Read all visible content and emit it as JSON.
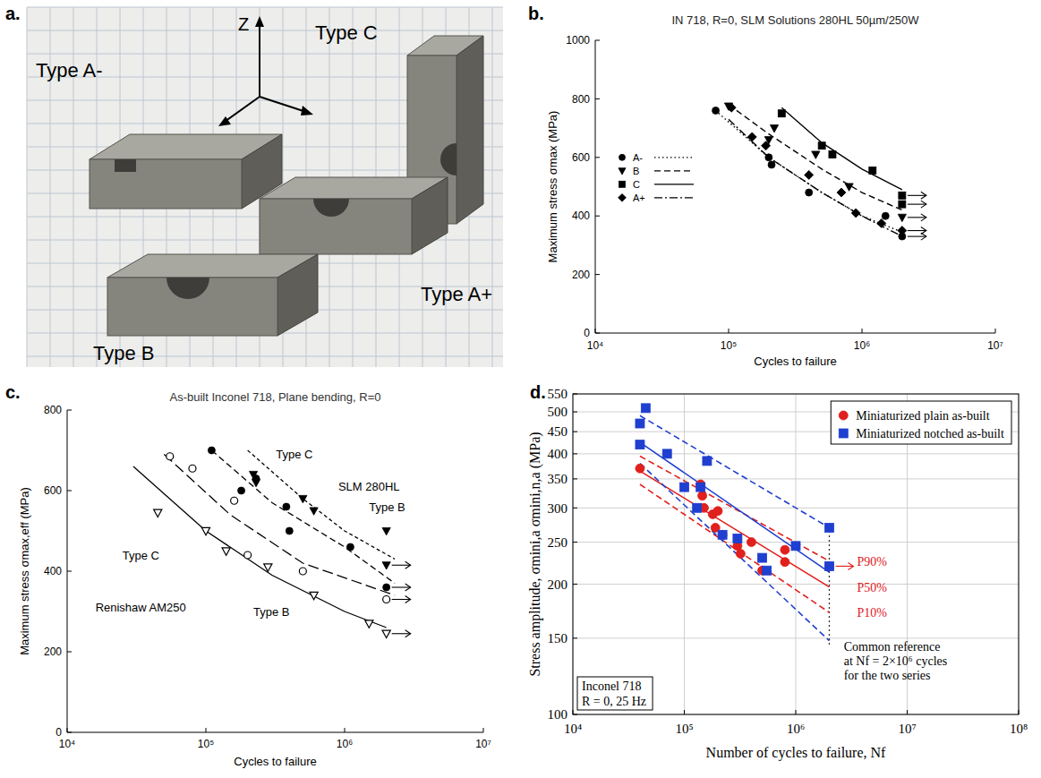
{
  "panel_labels": [
    "a.",
    "b.",
    "c.",
    "d."
  ],
  "photo": {
    "axis_label": "Z",
    "labels": [
      "Type A-",
      "Type C",
      "Type A+",
      "Type B"
    ]
  },
  "chart_data": [
    {
      "type": "scatter",
      "title": "IN 718, R=0, SLM Solutions 280HL 50µm/250W",
      "x_label": "Cycles to failure",
      "y_label": "Maximum stress σmax (MPa)",
      "log": "x",
      "xlim": [
        10000,
        10000000
      ],
      "xticks": [
        {
          "value": 10000,
          "label": "10⁴"
        },
        {
          "value": 100000,
          "label": "10⁵"
        },
        {
          "value": 1000000,
          "label": "10⁶"
        },
        {
          "value": 10000000,
          "label": "10⁷"
        }
      ],
      "ylim": [
        0,
        1000
      ],
      "yticks": [
        0,
        200,
        400,
        600,
        800,
        1000
      ],
      "grid": false,
      "legend": "lower left",
      "series": [
        {
          "name": "A-",
          "color": "#000000",
          "marker": "circle",
          "line_style": "dotted",
          "x": [
            80000,
            200000,
            210000,
            400000,
            1500000,
            2000000
          ],
          "values": [
            760,
            600,
            575,
            480,
            400,
            330
          ],
          "runout": [
            false,
            false,
            false,
            false,
            false,
            true
          ],
          "fits": [
            {
              "x": [
                80000,
                200000,
                500000,
                1000000,
                2000000
              ],
              "values": [
                760,
                600,
                480,
                400,
                345
              ]
            }
          ]
        },
        {
          "name": "B",
          "color": "#000000",
          "marker": "triangle-down",
          "line_style": "dashed",
          "x": [
            100000,
            200000,
            220000,
            450000,
            800000,
            2000000
          ],
          "values": [
            775,
            660,
            700,
            610,
            500,
            395
          ],
          "runout": [
            false,
            false,
            false,
            false,
            false,
            true
          ],
          "fits": [
            {
              "x": [
                100000,
                200000,
                500000,
                1000000,
                2000000
              ],
              "values": [
                780,
                680,
                560,
                480,
                420
              ]
            }
          ]
        },
        {
          "name": "C",
          "color": "#000000",
          "marker": "square",
          "line_style": "solid",
          "x": [
            250000,
            500000,
            600000,
            1200000,
            2000000,
            2000000
          ],
          "values": [
            750,
            640,
            610,
            555,
            470,
            440
          ],
          "runout": [
            false,
            false,
            false,
            false,
            true,
            true
          ],
          "fits": [
            {
              "x": [
                250000,
                500000,
                1000000,
                2000000
              ],
              "values": [
                770,
                650,
                560,
                490
              ]
            }
          ]
        },
        {
          "name": "A+",
          "color": "#000000",
          "marker": "diamond",
          "line_style": "dash-dot",
          "x": [
            105000,
            150000,
            190000,
            400000,
            700000,
            900000,
            1400000,
            2000000
          ],
          "values": [
            770,
            670,
            640,
            540,
            480,
            410,
            375,
            350
          ],
          "runout": [
            false,
            false,
            false,
            false,
            false,
            false,
            false,
            true
          ],
          "fits": [
            {
              "x": [
                100000,
                200000,
                500000,
                1000000,
                2000000
              ],
              "values": [
                730,
                600,
                480,
                400,
                330
              ]
            }
          ]
        }
      ]
    },
    {
      "type": "scatter",
      "title": "As-built Inconel 718, Plane bending, R=0",
      "x_label": "Cycles to failure",
      "y_label": "Maximum stress σmax,eff (MPa)",
      "log": "x",
      "xlim": [
        10000,
        10000000
      ],
      "xticks": [
        {
          "value": 10000,
          "label": "10⁴"
        },
        {
          "value": 100000,
          "label": "10⁵"
        },
        {
          "value": 1000000,
          "label": "10⁶"
        },
        {
          "value": 10000000,
          "label": "10⁷"
        }
      ],
      "ylim": [
        0,
        800
      ],
      "yticks": [
        0,
        200,
        400,
        600,
        800
      ],
      "grid": false,
      "series": [
        {
          "color": "#000000",
          "marker": "triangle-down",
          "line_style": "short-dash",
          "x": [
            220000,
            230000,
            500000,
            600000,
            2000000,
            2000000
          ],
          "values": [
            640,
            620,
            580,
            550,
            500,
            415
          ],
          "runout": [
            false,
            false,
            false,
            false,
            false,
            true
          ],
          "fits": [
            {
              "x": [
                200000,
                500000,
                1000000,
                2300000
              ],
              "values": [
                700,
                580,
                500,
                430
              ]
            }
          ]
        },
        {
          "color": "#000000",
          "marker": "circle",
          "line_style": "dashed",
          "x": [
            110000,
            180000,
            230000,
            380000,
            400000,
            1100000,
            2000000
          ],
          "values": [
            700,
            600,
            630,
            560,
            500,
            460,
            360
          ],
          "runout": [
            false,
            false,
            false,
            false,
            false,
            false,
            true
          ],
          "fits": [
            {
              "x": [
                110000,
                300000,
                1000000,
                2300000
              ],
              "values": [
                700,
                570,
                460,
                370
              ]
            }
          ]
        },
        {
          "color": "#000000",
          "marker": "circle-open",
          "line_style": "long-dash",
          "x": [
            55000,
            80000,
            160000,
            200000,
            500000,
            2000000
          ],
          "values": [
            685,
            655,
            575,
            440,
            400,
            330
          ],
          "runout": [
            false,
            false,
            false,
            false,
            false,
            true
          ],
          "fits": [
            {
              "x": [
                50000,
                150000,
                500000,
                2300000
              ],
              "values": [
                690,
                540,
                420,
                340
              ]
            }
          ]
        },
        {
          "color": "#000000",
          "marker": "triangle-down-open",
          "line_style": "solid",
          "x": [
            45000,
            100000,
            140000,
            280000,
            600000,
            1500000,
            2000000
          ],
          "values": [
            545,
            500,
            450,
            410,
            340,
            270,
            245
          ],
          "runout": [
            false,
            false,
            false,
            false,
            false,
            false,
            true
          ],
          "fits": [
            {
              "x": [
                30000,
                100000,
                300000,
                1000000,
                2000000
              ],
              "values": [
                660,
                500,
                390,
                300,
                260
              ]
            }
          ]
        }
      ],
      "annotations": [
        {
          "text": "Type C",
          "x": 320000,
          "y": 680
        },
        {
          "text": "SLM 280HL",
          "x": 900000,
          "y": 600
        },
        {
          "text": "Type B",
          "x": 1500000,
          "y": 548
        },
        {
          "text": "Type C",
          "x": 25000,
          "y": 430
        },
        {
          "text": "Renishaw AM250",
          "x": 16000,
          "y": 300
        },
        {
          "text": "Type B",
          "x": 220000,
          "y": 290
        }
      ]
    },
    {
      "type": "scatter",
      "x_label": "Number of cycles to failure, Nf",
      "y_label": "Stress amplitude, σmini,a σmini,n,a (MPa)",
      "log": true,
      "xlim": [
        10000,
        100000000
      ],
      "xticks": [
        {
          "value": 10000,
          "label": "10⁴"
        },
        {
          "value": 100000,
          "label": "10⁵"
        },
        {
          "value": 1000000,
          "label": "10⁶"
        },
        {
          "value": 10000000,
          "label": "10⁷"
        },
        {
          "value": 100000000,
          "label": "10⁸"
        }
      ],
      "ylim": [
        100,
        550
      ],
      "yticks": [
        100,
        150,
        200,
        250,
        300,
        350,
        400,
        450,
        500,
        550
      ],
      "grid": true,
      "legend": "upper right",
      "series": [
        {
          "name": "Miniaturized plain as-built",
          "color": "#e0201c",
          "marker": "circle",
          "line_style": "solid",
          "x": [
            40000,
            140000,
            145000,
            150000,
            180000,
            190000,
            200000,
            220000,
            300000,
            320000,
            400000,
            500000,
            800000,
            800000,
            2000000
          ],
          "values": [
            370,
            340,
            320,
            300,
            290,
            270,
            295,
            260,
            245,
            235,
            250,
            215,
            240,
            225,
            220
          ],
          "runout": [
            false,
            false,
            false,
            false,
            false,
            false,
            false,
            false,
            false,
            false,
            false,
            false,
            false,
            false,
            true
          ],
          "fits": [
            {
              "label": "P90%",
              "line_style": "dashed",
              "x": [
                40000,
                2000000
              ],
              "values": [
                395,
                226
              ]
            },
            {
              "label": "P50%",
              "line_style": "solid",
              "x": [
                40000,
                2000000
              ],
              "values": [
                365,
                197
              ]
            },
            {
              "label": "P10%",
              "line_style": "dashed",
              "x": [
                40000,
                2000000
              ],
              "values": [
                340,
                172
              ]
            }
          ]
        },
        {
          "name": "Miniaturized notched as-built",
          "color": "#1f3fd0",
          "marker": "square",
          "line_style": "solid",
          "x": [
            40000,
            40000,
            45000,
            70000,
            100000,
            130000,
            140000,
            160000,
            220000,
            300000,
            500000,
            550000,
            1000000,
            2000000,
            2000000
          ],
          "values": [
            470,
            420,
            510,
            400,
            335,
            300,
            335,
            385,
            260,
            255,
            230,
            215,
            245,
            270,
            220
          ],
          "fits": [
            {
              "line_style": "dashed",
              "x": [
                40000,
                2000000
              ],
              "values": [
                490,
                270
              ]
            },
            {
              "line_style": "solid",
              "x": [
                40000,
                2000000
              ],
              "values": [
                425,
                213
              ]
            },
            {
              "line_style": "dashed",
              "x": [
                40000,
                2000000
              ],
              "values": [
                380,
                148
              ]
            }
          ]
        }
      ],
      "reference": {
        "x": 2000000,
        "values": [
          145,
          275
        ]
      },
      "annotations": [
        {
          "lines": [
            "Common reference",
            "at Nf = 2×10⁶ cycles",
            "for the two series"
          ],
          "x": 2700000,
          "y": 140
        }
      ],
      "note": [
        "Inconel 718",
        "R = 0, 25 Hz"
      ]
    }
  ]
}
